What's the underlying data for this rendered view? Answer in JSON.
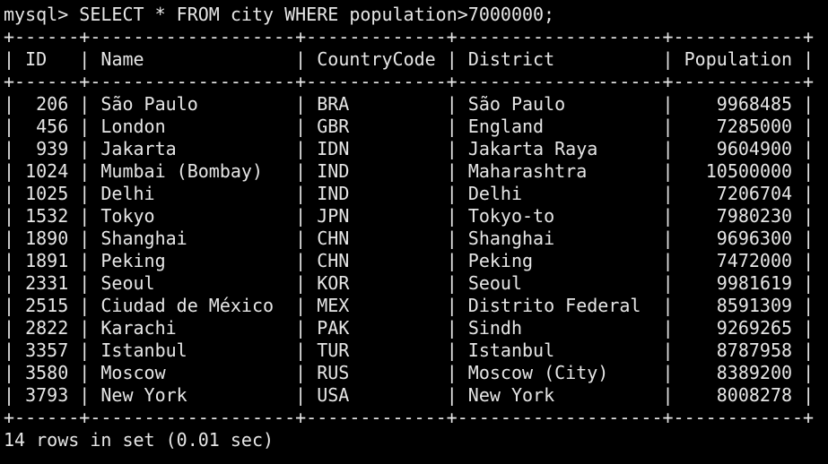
{
  "terminal": {
    "prompt": "mysql> ",
    "command": "SELECT * FROM city WHERE population>7000000;",
    "border": "+------+-------------------+-------------+-------------------+------------+",
    "headers": [
      "ID",
      "Name",
      "CountryCode",
      "District",
      "Population"
    ],
    "rows": [
      [
        "206",
        "São Paulo",
        "BRA",
        "São Paulo",
        "9968485"
      ],
      [
        "456",
        "London",
        "GBR",
        "England",
        "7285000"
      ],
      [
        "939",
        "Jakarta",
        "IDN",
        "Jakarta Raya",
        "9604900"
      ],
      [
        "1024",
        "Mumbai (Bombay)",
        "IND",
        "Maharashtra",
        "10500000"
      ],
      [
        "1025",
        "Delhi",
        "IND",
        "Delhi",
        "7206704"
      ],
      [
        "1532",
        "Tokyo",
        "JPN",
        "Tokyo-to",
        "7980230"
      ],
      [
        "1890",
        "Shanghai",
        "CHN",
        "Shanghai",
        "9696300"
      ],
      [
        "1891",
        "Peking",
        "CHN",
        "Peking",
        "7472000"
      ],
      [
        "2331",
        "Seoul",
        "KOR",
        "Seoul",
        "9981619"
      ],
      [
        "2515",
        "Ciudad de México",
        "MEX",
        "Distrito Federal",
        "8591309"
      ],
      [
        "2822",
        "Karachi",
        "PAK",
        "Sindh",
        "9269265"
      ],
      [
        "3357",
        "Istanbul",
        "TUR",
        "Istanbul",
        "8787958"
      ],
      [
        "3580",
        "Moscow",
        "RUS",
        "Moscow (City)",
        "8389200"
      ],
      [
        "3793",
        "New York",
        "USA",
        "New York",
        "8008278"
      ]
    ],
    "footer": "14 rows in set (0.01 sec)",
    "colors": {
      "background": "#000000",
      "foreground": "#e6e6e6"
    }
  }
}
